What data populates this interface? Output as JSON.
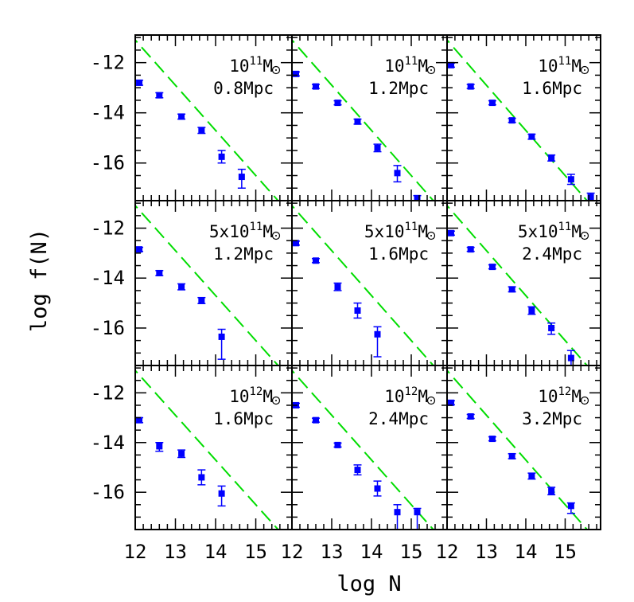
{
  "chart_data": {
    "type": "scatter",
    "layout": {
      "rows": 3,
      "cols": 3,
      "shared_axes": true
    },
    "xlabel": "log N",
    "ylabel": "log f(N)",
    "xlim": [
      12,
      15.9
    ],
    "ylim": [
      -17.5,
      -10.9
    ],
    "x_ticks": [
      "12",
      "13",
      "14",
      "15"
    ],
    "x_tick_values": [
      12,
      13,
      14,
      15
    ],
    "y_ticks": [
      "-12",
      "-14",
      "-16"
    ],
    "y_tick_values": [
      -12,
      -14,
      -16
    ],
    "colors": {
      "points": "#0000ff",
      "reference_line": "#00dd00",
      "frame": "#000000"
    },
    "reference_line": {
      "style": "dashed",
      "slope": -1.8,
      "intercept": 10.5
    },
    "panels": [
      {
        "mass": "10",
        "mass_exp": "11",
        "mass_unit": "M",
        "radius": "0.8Mpc",
        "x": [
          12.1,
          12.6,
          13.15,
          13.65,
          14.15,
          14.65
        ],
        "y": [
          -12.8,
          -13.3,
          -14.15,
          -14.7,
          -15.75,
          -16.55
        ],
        "err_lo": [
          0.1,
          0.1,
          0.1,
          0.12,
          0.25,
          0.45
        ],
        "err_hi": [
          0.1,
          0.1,
          0.1,
          0.12,
          0.25,
          0.3
        ]
      },
      {
        "mass": "10",
        "mass_exp": "11",
        "mass_unit": "M",
        "radius": "1.2Mpc",
        "x": [
          12.1,
          12.6,
          13.15,
          13.65,
          14.15,
          14.65,
          15.15
        ],
        "y": [
          -12.45,
          -12.95,
          -13.6,
          -14.35,
          -15.4,
          -16.4,
          -17.4
        ],
        "err_lo": [
          0.08,
          0.08,
          0.08,
          0.1,
          0.15,
          0.35,
          0.15
        ],
        "err_hi": [
          0.08,
          0.08,
          0.08,
          0.1,
          0.15,
          0.3,
          0.1
        ]
      },
      {
        "mass": "10",
        "mass_exp": "11",
        "mass_unit": "M",
        "radius": "1.6Mpc",
        "x": [
          12.1,
          12.6,
          13.15,
          13.65,
          14.15,
          14.65,
          15.15,
          15.65
        ],
        "y": [
          -12.1,
          -12.95,
          -13.6,
          -14.3,
          -14.95,
          -15.8,
          -16.65,
          -17.35
        ],
        "err_lo": [
          0.08,
          0.08,
          0.08,
          0.08,
          0.1,
          0.12,
          0.2,
          0.15
        ],
        "err_hi": [
          0.08,
          0.08,
          0.08,
          0.08,
          0.1,
          0.12,
          0.2,
          0.15
        ]
      },
      {
        "mass": "5x10",
        "mass_exp": "11",
        "mass_unit": "M",
        "radius": "1.2Mpc",
        "x": [
          12.1,
          12.6,
          13.15,
          13.65,
          14.15
        ],
        "y": [
          -12.85,
          -13.8,
          -14.35,
          -14.9,
          -16.35
        ],
        "err_lo": [
          0.08,
          0.1,
          0.12,
          0.12,
          0.9
        ],
        "err_hi": [
          0.08,
          0.1,
          0.12,
          0.12,
          0.3
        ]
      },
      {
        "mass": "5x10",
        "mass_exp": "11",
        "mass_unit": "M",
        "radius": "1.6Mpc",
        "x": [
          12.1,
          12.6,
          13.15,
          13.65,
          14.15
        ],
        "y": [
          -12.6,
          -13.3,
          -14.35,
          -15.3,
          -16.25
        ],
        "err_lo": [
          0.08,
          0.08,
          0.15,
          0.3,
          0.9
        ],
        "err_hi": [
          0.08,
          0.08,
          0.15,
          0.3,
          0.3
        ]
      },
      {
        "mass": "5x10",
        "mass_exp": "11",
        "mass_unit": "M",
        "radius": "2.4Mpc",
        "x": [
          12.1,
          12.6,
          13.15,
          13.65,
          14.15,
          14.65,
          15.15
        ],
        "y": [
          -12.2,
          -12.85,
          -13.55,
          -14.45,
          -15.3,
          -16.0,
          -17.2
        ],
        "err_lo": [
          0.08,
          0.08,
          0.08,
          0.1,
          0.15,
          0.25,
          0.3
        ],
        "err_hi": [
          0.08,
          0.08,
          0.08,
          0.1,
          0.15,
          0.2,
          0.3
        ]
      },
      {
        "mass": "10",
        "mass_exp": "12",
        "mass_unit": "M",
        "radius": "1.6Mpc",
        "x": [
          12.1,
          12.6,
          13.15,
          13.65,
          14.15
        ],
        "y": [
          -13.1,
          -14.15,
          -14.45,
          -15.4,
          -16.05
        ],
        "err_lo": [
          0.1,
          0.2,
          0.15,
          0.3,
          0.5
        ],
        "err_hi": [
          0.1,
          0.15,
          0.15,
          0.3,
          0.3
        ]
      },
      {
        "mass": "10",
        "mass_exp": "12",
        "mass_unit": "M",
        "radius": "2.4Mpc",
        "x": [
          12.1,
          12.6,
          13.15,
          13.65,
          14.15,
          14.65,
          15.15
        ],
        "y": [
          -12.5,
          -13.1,
          -14.1,
          -15.1,
          -15.85,
          -16.8,
          -16.8
        ],
        "err_lo": [
          0.08,
          0.08,
          0.08,
          0.2,
          0.3,
          0.8,
          0.8
        ],
        "err_hi": [
          0.08,
          0.08,
          0.08,
          0.2,
          0.3,
          0.3,
          0.15
        ]
      },
      {
        "mass": "10",
        "mass_exp": "12",
        "mass_unit": "M",
        "radius": "3.2Mpc",
        "x": [
          12.1,
          12.6,
          13.15,
          13.65,
          14.15,
          14.65,
          15.15
        ],
        "y": [
          -12.4,
          -12.95,
          -13.85,
          -14.55,
          -15.35,
          -15.95,
          -16.55
        ],
        "err_lo": [
          0.08,
          0.08,
          0.08,
          0.1,
          0.12,
          0.15,
          0.3
        ],
        "err_hi": [
          0.08,
          0.08,
          0.08,
          0.1,
          0.12,
          0.15,
          0.12
        ]
      }
    ]
  }
}
